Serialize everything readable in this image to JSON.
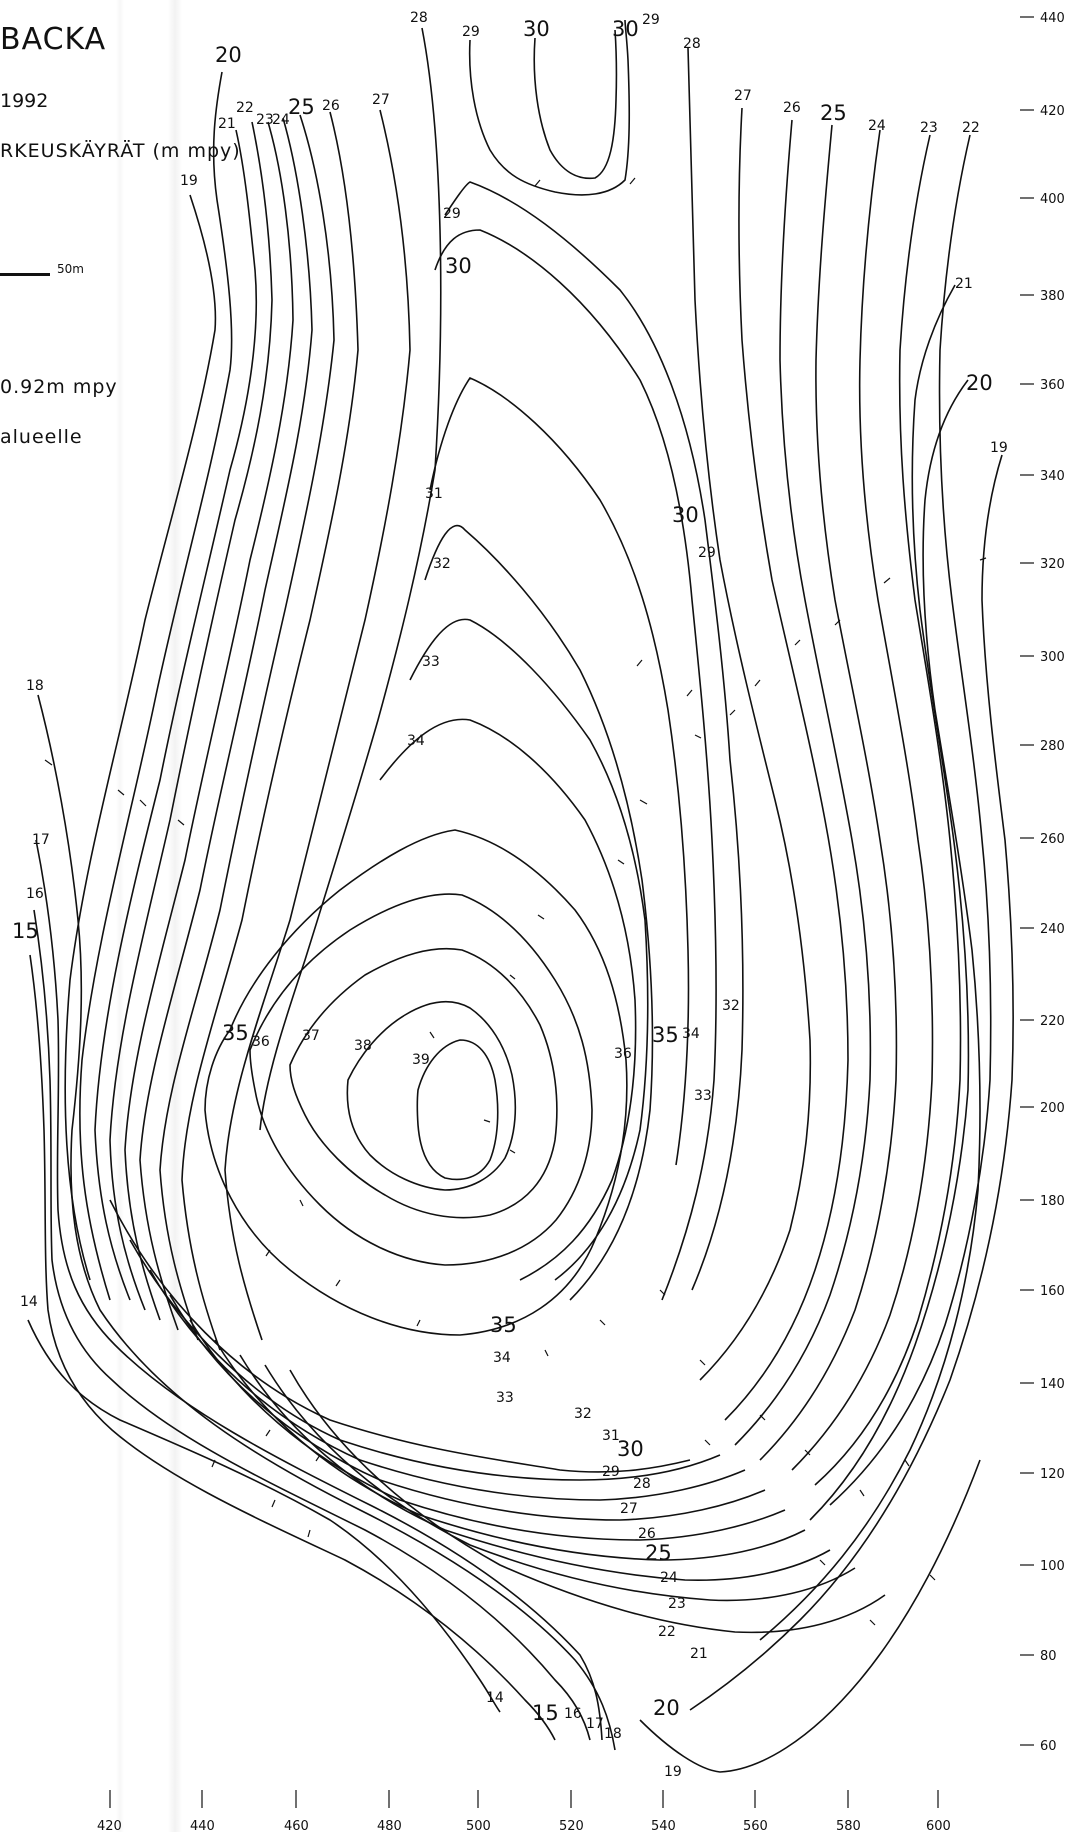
{
  "header": {
    "title": "BACKA",
    "year": "1992",
    "subtitle": "RKEUSKÄYRÄT (m mpy)",
    "scale_label": "50m",
    "datum_note": "0.92m mpy",
    "area_note": "alueelle"
  },
  "axes": {
    "x_ticks": [
      "420",
      "440",
      "460",
      "480",
      "500",
      "520",
      "540",
      "560",
      "580",
      "600"
    ],
    "y_ticks": [
      "440",
      "420",
      "400",
      "380",
      "360",
      "340",
      "320",
      "300",
      "280",
      "260",
      "240",
      "220",
      "200",
      "180",
      "160",
      "140",
      "120",
      "100",
      "80",
      "60"
    ]
  },
  "contour_labels": {
    "top_left": [
      "20",
      "19",
      "21",
      "22",
      "23",
      "24",
      "25",
      "26",
      "27",
      "28"
    ],
    "top_right": [
      "29",
      "30",
      "30",
      "29",
      "28",
      "27",
      "26",
      "25",
      "24",
      "23",
      "22",
      "21",
      "20",
      "19"
    ],
    "interior": [
      "29",
      "30",
      "31",
      "32",
      "33",
      "34",
      "30",
      "29",
      "32",
      "33",
      "34",
      "35",
      "36",
      "37",
      "38",
      "39",
      "36",
      "35"
    ],
    "bottom_right": [
      "35",
      "34",
      "33",
      "32",
      "31",
      "30",
      "29",
      "28",
      "27",
      "26",
      "25",
      "24",
      "23",
      "22",
      "21",
      "20",
      "19"
    ],
    "bottom": [
      "14",
      "15",
      "16",
      "17",
      "18"
    ],
    "left": [
      "18",
      "17",
      "16",
      "15",
      "14"
    ]
  }
}
